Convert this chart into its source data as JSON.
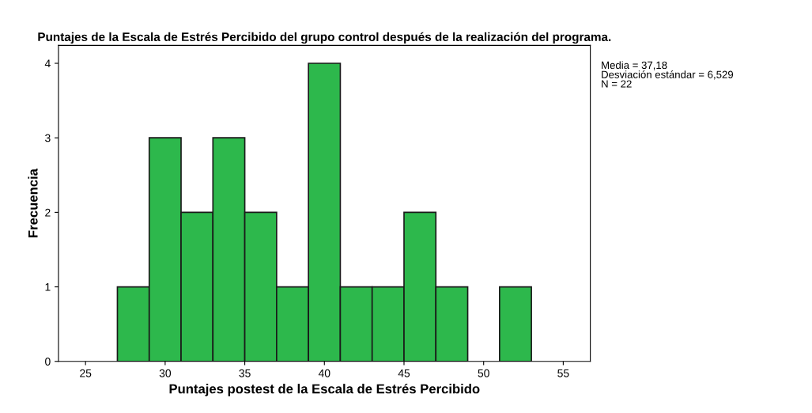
{
  "chart_data": {
    "type": "histogram",
    "title": "Puntajes de la Escala de Estrés Percibido del grupo control después de la realización del programa.",
    "xlabel": "Puntajes postest de la Escala de Estrés Percibido",
    "ylabel": "Frecuencia",
    "bins": [
      27,
      29,
      31,
      33,
      35,
      37,
      39,
      41,
      43,
      45,
      47,
      49,
      51,
      53
    ],
    "values": [
      1,
      3,
      2,
      3,
      2,
      1,
      4,
      1,
      1,
      2,
      1,
      0,
      1
    ],
    "color": "#2db84c",
    "xlim": [
      23.3,
      56.7
    ],
    "xticks": [
      25,
      30,
      35,
      40,
      45,
      50,
      55
    ],
    "ylim": [
      0,
      4.24
    ],
    "yticks": [
      0,
      1,
      2,
      3,
      4
    ],
    "annotations": [
      "Media = 37,18\nDesviación estándar = 6,529\nN = 22"
    ],
    "grid": false,
    "legend": false
  }
}
